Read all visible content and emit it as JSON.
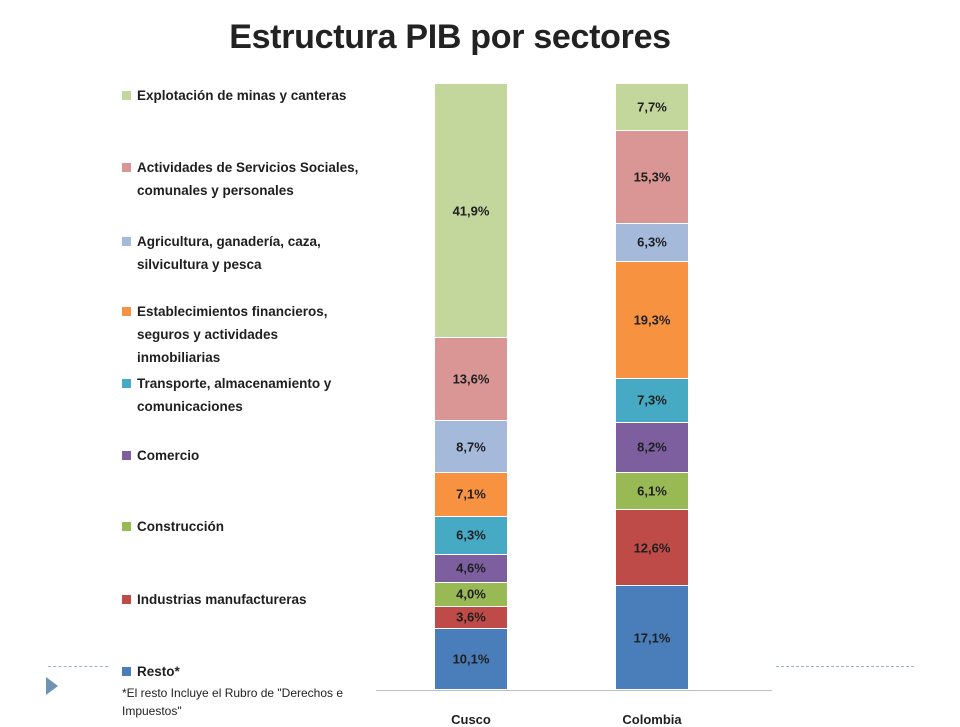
{
  "title": "Estructura PIB por sectores",
  "chart_data": {
    "type": "bar",
    "stacked": true,
    "normalized_to": 100,
    "categories": [
      "Cusco",
      "Colombia"
    ],
    "series": [
      {
        "name": "Resto*",
        "color": "#4a7ebb",
        "values": [
          10.1,
          17.1
        ],
        "labels": [
          "10,1%",
          "17,1%"
        ]
      },
      {
        "name": "Industrias manufactureras",
        "color": "#be4b48",
        "values": [
          3.6,
          12.6
        ],
        "labels": [
          "3,6%",
          "12,6%"
        ]
      },
      {
        "name": "Construcción",
        "color": "#98b954",
        "values": [
          4.0,
          6.1
        ],
        "labels": [
          "4,0%",
          "6,1%"
        ]
      },
      {
        "name": "Comercio",
        "color": "#7d5fa0",
        "values": [
          4.6,
          8.2
        ],
        "labels": [
          "4,6%",
          "8,2%"
        ]
      },
      {
        "name": "Transporte, almacenamiento y comunicaciones",
        "color": "#46aac5",
        "values": [
          6.3,
          7.3
        ],
        "labels": [
          "6,3%",
          "7,3%"
        ]
      },
      {
        "name": "Establecimientos financieros, seguros y actividades inmobiliarias",
        "color": "#f69240",
        "values": [
          7.1,
          19.3
        ],
        "labels": [
          "7,1%",
          "19,3%"
        ]
      },
      {
        "name": "Agricultura, ganadería, caza, silvicultura y pesca",
        "color": "#a5b9db",
        "values": [
          8.7,
          6.3
        ],
        "labels": [
          "8,7%",
          "6,3%"
        ]
      },
      {
        "name": "Actividades de Servicios Sociales, comunales y personales",
        "color": "#d99694",
        "values": [
          13.6,
          15.3
        ],
        "labels": [
          "13,6%",
          "15,3%"
        ]
      },
      {
        "name": "Explotación de minas y canteras",
        "color": "#c3d69b",
        "values": [
          41.9,
          7.7
        ],
        "labels": [
          "41,9%",
          "7,7%"
        ]
      }
    ],
    "legend": {
      "position": "left",
      "items": [
        {
          "lines": [
            "Explotación de minas y canteras"
          ],
          "color": "#c3d69b"
        },
        {
          "lines": [
            "Actividades de Servicios Sociales,",
            "comunales y personales"
          ],
          "color": "#d99694"
        },
        {
          "lines": [
            "Agricultura, ganadería, caza,",
            "silvicultura y pesca"
          ],
          "color": "#a5b9db"
        },
        {
          "lines": [
            "Establecimientos financieros,",
            "seguros y actividades",
            "inmobiliarias"
          ],
          "color": "#f69240"
        },
        {
          "lines": [
            "Transporte, almacenamiento y",
            "comunicaciones"
          ],
          "color": "#46aac5"
        },
        {
          "lines": [
            "Comercio"
          ],
          "color": "#7d5fa0"
        },
        {
          "lines": [
            "Construcción"
          ],
          "color": "#98b954"
        },
        {
          "lines": [
            "Industrias manufactureras"
          ],
          "color": "#be4b48"
        },
        {
          "lines": [
            "Resto*"
          ],
          "color": "#4a7ebb"
        }
      ]
    },
    "footnote": "*El resto Incluye el Rubro de \"Derechos e Impuestos\"",
    "grid": false
  }
}
